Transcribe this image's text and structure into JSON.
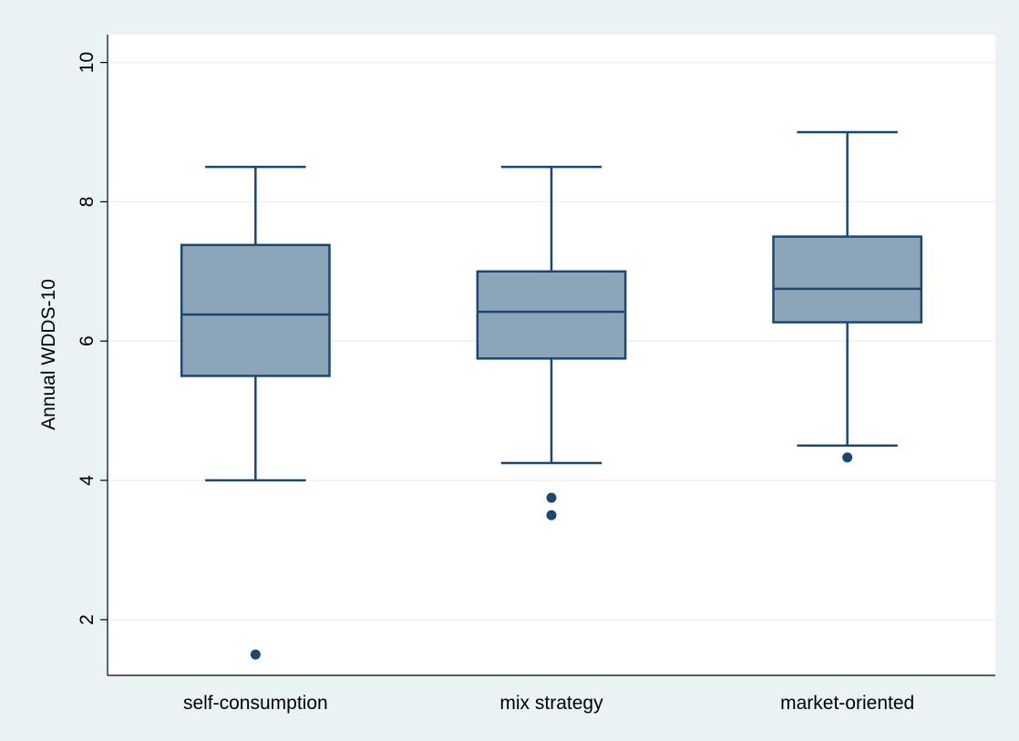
{
  "chart_data": {
    "type": "box",
    "title": "",
    "xlabel": "",
    "ylabel": "Annual WDDS-10",
    "ylim": [
      1.2,
      10.4
    ],
    "yticks": [
      2,
      4,
      6,
      8,
      10
    ],
    "grid": true,
    "categories": [
      "self-consumption",
      "mix strategy",
      "market-oriented"
    ],
    "boxes": [
      {
        "category": "self-consumption",
        "whisker_low": 4.0,
        "q1": 5.5,
        "median": 6.38,
        "q3": 7.38,
        "whisker_high": 8.5,
        "outliers": [
          1.5
        ]
      },
      {
        "category": "mix strategy",
        "whisker_low": 4.25,
        "q1": 5.75,
        "median": 6.42,
        "q3": 7.0,
        "whisker_high": 8.5,
        "outliers": [
          3.5,
          3.75
        ]
      },
      {
        "category": "market-oriented",
        "whisker_low": 4.5,
        "q1": 6.27,
        "median": 6.75,
        "q3": 7.5,
        "whisker_high": 9.0,
        "outliers": [
          4.33
        ]
      }
    ],
    "colors": {
      "outer_background": "#eaf2f3",
      "plot_background": "#ffffff",
      "box_fill": "#8ca5b8",
      "box_stroke": "#1a476f",
      "gridline": "#eaf2f3",
      "axis": "#000000"
    }
  }
}
